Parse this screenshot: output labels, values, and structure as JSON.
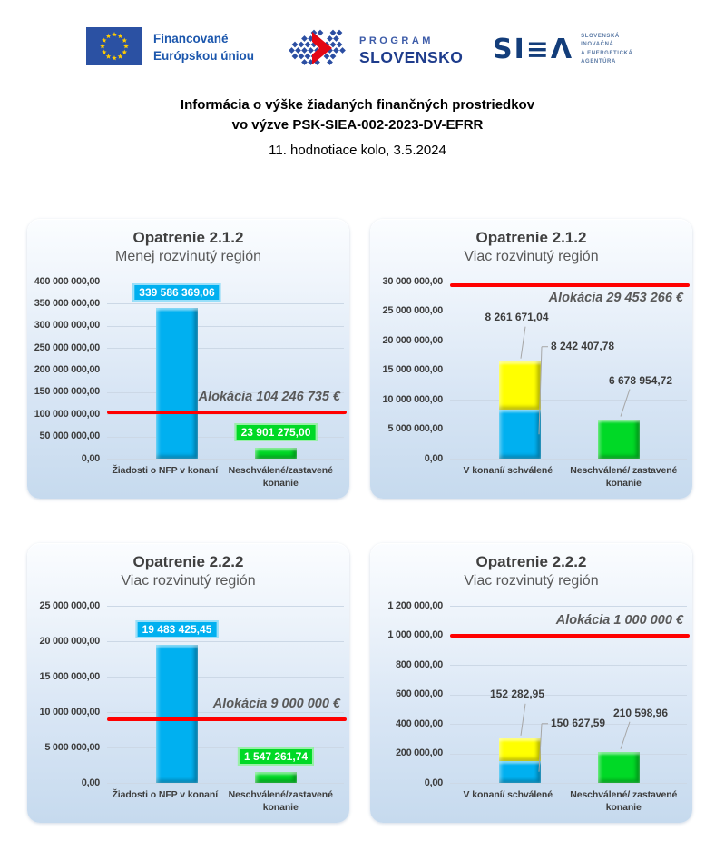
{
  "page": {
    "title_line1": "Informácia o výške žiadaných finančných prostriedkov",
    "title_line2": "vo výzve PSK-SIEA-002-2023-DV-EFRR",
    "subtitle": "11. hodnotiace kolo, 3.5.2024"
  },
  "header": {
    "eu_logo": {
      "line1": "Financované",
      "line2": "Európskou úniou"
    },
    "program_slovensko_logo": {
      "line1": "PROGRAM",
      "line2": "SLOVENSKO"
    },
    "siea_logo": {
      "mark": "SI≡Λ",
      "sub_lines": [
        "SLOVENSKÁ",
        "INOVAČNÁ",
        "A ENERGETICKÁ",
        "AGENTÚRA"
      ]
    }
  },
  "colors": {
    "cyan": "#00b0f0",
    "yellow": "#ffff00",
    "green": "#00d926",
    "allocation_line": "#ff0000",
    "eu_flag_blue": "#2b51a3",
    "eu_star_yellow": "#ffcc00",
    "logo_blue": "#2b4ea2",
    "logo_red": "#e30613",
    "siea_navy": "#133d7a"
  },
  "chart_data": [
    {
      "type": "bar",
      "title": "Opatrenie 2.1.2",
      "subtitle": "Menej rozvinutý región",
      "ylim": [
        0,
        400000000
      ],
      "yticks": [
        "400 000 000,00",
        "350 000 000,00",
        "300 000 000,00",
        "250 000 000,00",
        "200 000 000,00",
        "150 000 000,00",
        "100 000 000,00",
        "50 000 000,00",
        "0,00"
      ],
      "categories": [
        "Žiadosti o NFP v konaní",
        "Neschválené/zastavené konanie"
      ],
      "bars": [
        {
          "segments": [
            {
              "color": "cyan",
              "value": 339586369.06,
              "label": "339 586 369,06",
              "label_style": "boxed"
            }
          ]
        },
        {
          "segments": [
            {
              "color": "green",
              "value": 23901275.0,
              "label": "23 901 275,00",
              "label_style": "boxed"
            }
          ]
        }
      ],
      "allocation": {
        "value": 104246735,
        "label": "Alokácia 104 246 735 €"
      }
    },
    {
      "type": "stacked-bar",
      "title": "Opatrenie 2.1.2",
      "subtitle": "Viac rozvinutý región",
      "ylim": [
        0,
        30000000
      ],
      "yticks": [
        "30 000 000,00",
        "25 000 000,00",
        "20 000 000,00",
        "15 000 000,00",
        "10 000 000,00",
        "5 000 000,00",
        "0,00"
      ],
      "categories": [
        "V konaní/ schválené",
        "Neschválené/ zastavené konanie"
      ],
      "bars": [
        {
          "segments": [
            {
              "color": "cyan",
              "value": 8242407.78,
              "label": "8 242 407,78",
              "label_style": "callout-right"
            },
            {
              "color": "yellow",
              "value": 8261671.04,
              "label": "8 261 671,04",
              "label_style": "callout-top"
            }
          ]
        },
        {
          "segments": [
            {
              "color": "green",
              "value": 6678954.72,
              "label": "6 678 954,72",
              "label_style": "callout-top-right"
            }
          ]
        }
      ],
      "allocation": {
        "value": 29453266,
        "label": "Alokácia 29 453 266 €"
      }
    },
    {
      "type": "bar",
      "title": "Opatrenie 2.2.2",
      "subtitle": "Viac rozvinutý región",
      "ylim": [
        0,
        25000000
      ],
      "yticks": [
        "25 000 000,00",
        "20 000 000,00",
        "15 000 000,00",
        "10 000 000,00",
        "5 000 000,00",
        "0,00"
      ],
      "categories": [
        "Žiadosti o NFP v konaní",
        "Neschválené/zastavené konanie"
      ],
      "bars": [
        {
          "segments": [
            {
              "color": "cyan",
              "value": 19483425.45,
              "label": "19 483 425,45",
              "label_style": "boxed"
            }
          ]
        },
        {
          "segments": [
            {
              "color": "green",
              "value": 1547261.74,
              "label": "1 547 261,74",
              "label_style": "boxed"
            }
          ]
        }
      ],
      "allocation": {
        "value": 9000000,
        "label": "Alokácia 9 000 000 €"
      }
    },
    {
      "type": "stacked-bar",
      "title": "Opatrenie 2.2.2",
      "subtitle": "Viac rozvinutý región",
      "ylim": [
        0,
        1200000
      ],
      "yticks": [
        "1 200 000,00",
        "1 000 000,00",
        "800 000,00",
        "600 000,00",
        "400 000,00",
        "200 000,00",
        "0,00"
      ],
      "categories": [
        "V konaní/ schválené",
        "Neschválené/ zastavené konanie"
      ],
      "bars": [
        {
          "segments": [
            {
              "color": "cyan",
              "value": 150627.59,
              "label": "150 627,59",
              "label_style": "callout-right"
            },
            {
              "color": "yellow",
              "value": 152282.95,
              "label": "152 282,95",
              "label_style": "callout-top"
            }
          ]
        },
        {
          "segments": [
            {
              "color": "green",
              "value": 210598.96,
              "label": "210 598,96",
              "label_style": "callout-top-right"
            }
          ]
        }
      ],
      "allocation": {
        "value": 1000000,
        "label": "Alokácia 1 000 000 €"
      }
    }
  ]
}
